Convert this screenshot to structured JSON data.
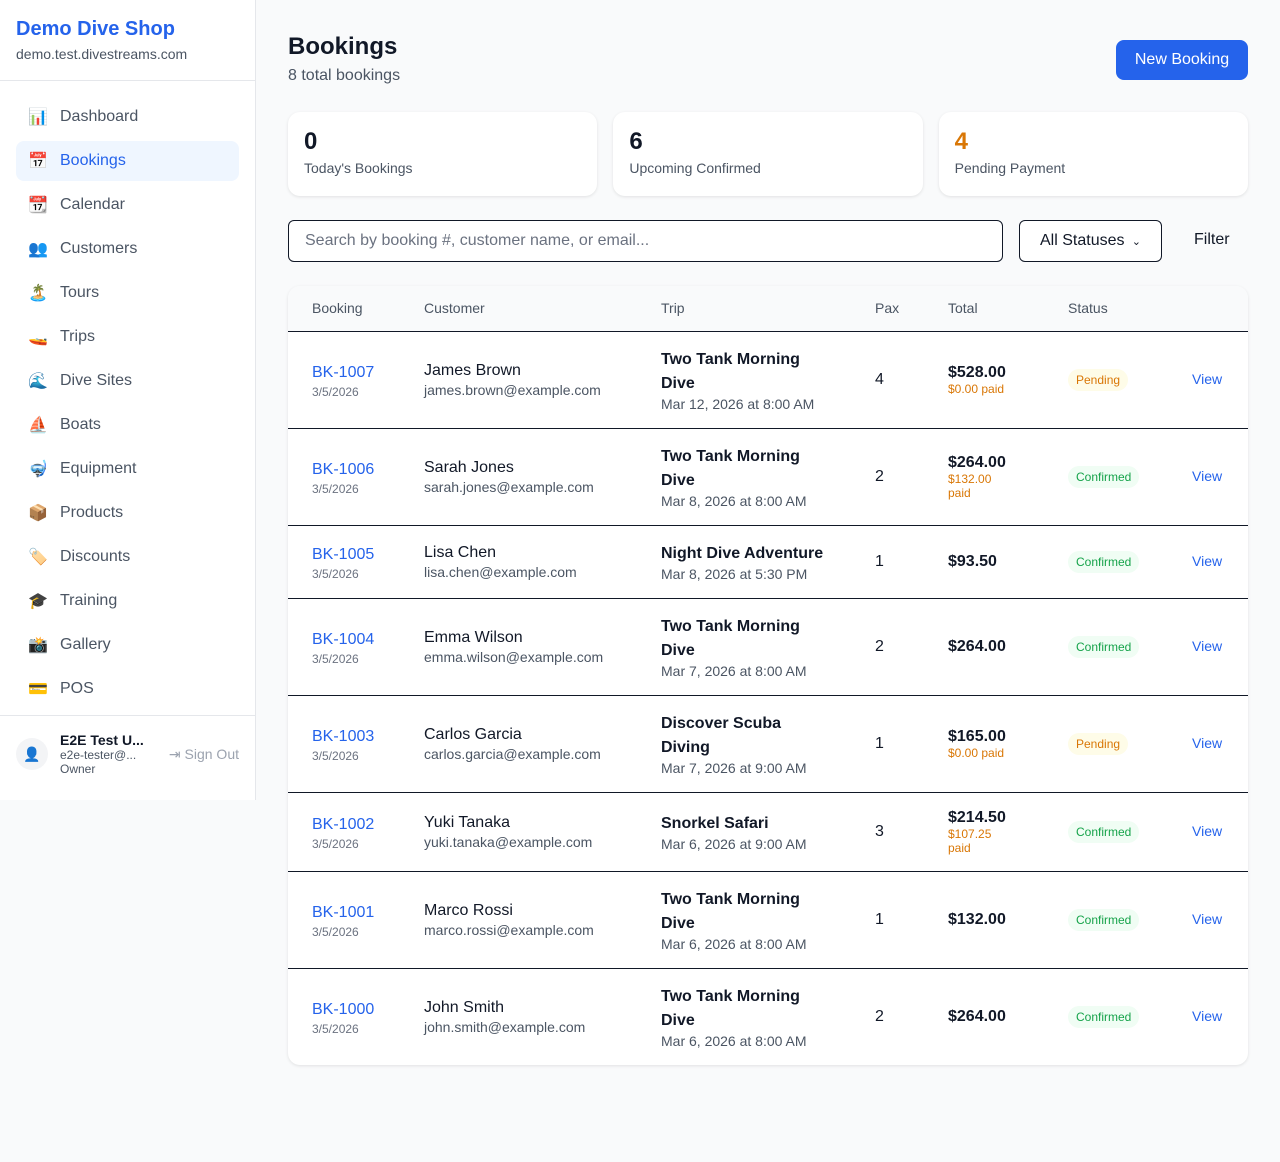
{
  "sidebar": {
    "brand": "Demo Dive Shop",
    "domain": "demo.test.divestreams.com",
    "items": [
      {
        "icon": "📊",
        "label": "Dashboard"
      },
      {
        "icon": "📅",
        "label": "Bookings"
      },
      {
        "icon": "📆",
        "label": "Calendar"
      },
      {
        "icon": "👥",
        "label": "Customers"
      },
      {
        "icon": "🏝️",
        "label": "Tours"
      },
      {
        "icon": "🚤",
        "label": "Trips"
      },
      {
        "icon": "🌊",
        "label": "Dive Sites"
      },
      {
        "icon": "⛵",
        "label": "Boats"
      },
      {
        "icon": "🤿",
        "label": "Equipment"
      },
      {
        "icon": "📦",
        "label": "Products"
      },
      {
        "icon": "🏷️",
        "label": "Discounts"
      },
      {
        "icon": "🎓",
        "label": "Training"
      },
      {
        "icon": "📸",
        "label": "Gallery"
      },
      {
        "icon": "💳",
        "label": "POS"
      }
    ],
    "active": "Bookings",
    "user": {
      "name": "E2E Test U...",
      "email": "e2e-tester@...",
      "role": "Owner",
      "sign_out": "Sign Out"
    }
  },
  "header": {
    "title": "Bookings",
    "subtitle": "8 total bookings",
    "new_button": "New Booking"
  },
  "stats": [
    {
      "value": "0",
      "label": "Today's Bookings",
      "color": "#111827"
    },
    {
      "value": "6",
      "label": "Upcoming Confirmed",
      "color": "#111827"
    },
    {
      "value": "4",
      "label": "Pending Payment",
      "color": "#d97706"
    }
  ],
  "filters": {
    "search_placeholder": "Search by booking #, customer name, or email...",
    "status": "All Statuses",
    "filter_button": "Filter"
  },
  "table": {
    "columns": [
      "Booking",
      "Customer",
      "Trip",
      "Pax",
      "Total",
      "Status",
      ""
    ],
    "rows": [
      {
        "id": "BK-1007",
        "date": "3/5/2026",
        "customer": "James Brown",
        "email": "james.brown@example.com",
        "trip": "Two Tank Morning Dive",
        "trip_date": "Mar 12, 2026 at 8:00 AM",
        "pax": "4",
        "total": "$528.00",
        "paid": "$0.00 paid",
        "status": "Pending",
        "action": "View"
      },
      {
        "id": "BK-1006",
        "date": "3/5/2026",
        "customer": "Sarah Jones",
        "email": "sarah.jones@example.com",
        "trip": "Two Tank Morning Dive",
        "trip_date": "Mar 8, 2026 at 8:00 AM",
        "pax": "2",
        "total": "$264.00",
        "paid": "$132.00 paid",
        "status": "Confirmed",
        "action": "View"
      },
      {
        "id": "BK-1005",
        "date": "3/5/2026",
        "customer": "Lisa Chen",
        "email": "lisa.chen@example.com",
        "trip": "Night Dive Adventure",
        "trip_date": "Mar 8, 2026 at 5:30 PM",
        "pax": "1",
        "total": "$93.50",
        "paid": "",
        "status": "Confirmed",
        "action": "View"
      },
      {
        "id": "BK-1004",
        "date": "3/5/2026",
        "customer": "Emma Wilson",
        "email": "emma.wilson@example.com",
        "trip": "Two Tank Morning Dive",
        "trip_date": "Mar 7, 2026 at 8:00 AM",
        "pax": "2",
        "total": "$264.00",
        "paid": "",
        "status": "Confirmed",
        "action": "View"
      },
      {
        "id": "BK-1003",
        "date": "3/5/2026",
        "customer": "Carlos Garcia",
        "email": "carlos.garcia@example.com",
        "trip": "Discover Scuba Diving",
        "trip_date": "Mar 7, 2026 at 9:00 AM",
        "pax": "1",
        "total": "$165.00",
        "paid": "$0.00 paid",
        "status": "Pending",
        "action": "View"
      },
      {
        "id": "BK-1002",
        "date": "3/5/2026",
        "customer": "Yuki Tanaka",
        "email": "yuki.tanaka@example.com",
        "trip": "Snorkel Safari",
        "trip_date": "Mar 6, 2026 at 9:00 AM",
        "pax": "3",
        "total": "$214.50",
        "paid": "$107.25 paid",
        "status": "Confirmed",
        "action": "View"
      },
      {
        "id": "BK-1001",
        "date": "3/5/2026",
        "customer": "Marco Rossi",
        "email": "marco.rossi@example.com",
        "trip": "Two Tank Morning Dive",
        "trip_date": "Mar 6, 2026 at 8:00 AM",
        "pax": "1",
        "total": "$132.00",
        "paid": "",
        "status": "Confirmed",
        "action": "View"
      },
      {
        "id": "BK-1000",
        "date": "3/5/2026",
        "customer": "John Smith",
        "email": "john.smith@example.com",
        "trip": "Two Tank Morning Dive",
        "trip_date": "Mar 6, 2026 at 8:00 AM",
        "pax": "2",
        "total": "$264.00",
        "paid": "",
        "status": "Confirmed",
        "action": "View"
      }
    ]
  }
}
